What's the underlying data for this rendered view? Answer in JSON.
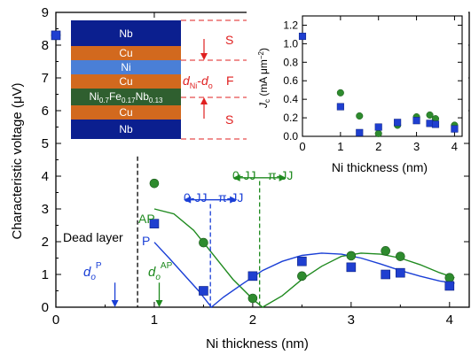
{
  "colors": {
    "ap": "#1f8a1f",
    "ap_marker": "#2e8b2e",
    "p": "#1a3fd6",
    "p_marker": "#1f3fd0",
    "nb": "#0b1f8f",
    "cu": "#d2691e",
    "ni": "#4a7fd6",
    "nifenb": "#2f5f2f",
    "red": "#e02020",
    "black": "#000000"
  },
  "chart_data": [
    {
      "type": "scatter",
      "xlabel": "Ni thickness (nm)",
      "ylabel": "Characteristic voltage (μV)",
      "xlim": [
        0,
        4.2
      ],
      "ylim": [
        0,
        9
      ],
      "xticks": [
        "0",
        "1",
        "2",
        "3",
        "4"
      ],
      "yticks": [
        "0",
        "1",
        "2",
        "3",
        "4",
        "5",
        "6",
        "7",
        "8",
        "9"
      ],
      "series": [
        {
          "name": "AP",
          "marker": "circle",
          "x": [
            0,
            1.0,
            1.5,
            2.0,
            2.5,
            3.0,
            3.35,
            3.5,
            4.0
          ],
          "y": [
            8.3,
            3.78,
            1.97,
            0.27,
            0.95,
            1.57,
            1.72,
            1.55,
            0.9
          ]
        },
        {
          "name": "P",
          "marker": "square",
          "x": [
            0,
            1.0,
            1.5,
            2.0,
            2.5,
            3.0,
            3.35,
            3.5,
            4.0
          ],
          "y": [
            8.3,
            2.55,
            0.5,
            0.95,
            1.4,
            1.22,
            1.0,
            1.05,
            0.65
          ]
        }
      ],
      "fits": [
        {
          "name": "AP fit",
          "x": [
            1.0,
            1.2,
            1.4,
            1.6,
            1.8,
            2.0,
            2.1,
            2.3,
            2.5,
            2.7,
            2.9,
            3.1,
            3.3,
            3.5,
            3.7,
            3.9,
            4.05
          ],
          "y": [
            3.0,
            2.85,
            2.35,
            1.6,
            0.85,
            0.25,
            0.0,
            0.35,
            0.85,
            1.25,
            1.55,
            1.65,
            1.62,
            1.5,
            1.3,
            1.05,
            0.9
          ]
        },
        {
          "name": "P fit",
          "x": [
            1.0,
            1.15,
            1.3,
            1.45,
            1.58,
            1.7,
            1.9,
            2.1,
            2.3,
            2.5,
            2.7,
            2.9,
            3.1,
            3.3,
            3.5,
            3.7,
            3.9,
            4.05
          ],
          "y": [
            1.98,
            1.5,
            1.0,
            0.5,
            0.0,
            0.3,
            0.72,
            1.12,
            1.4,
            1.58,
            1.65,
            1.62,
            1.5,
            1.32,
            1.12,
            0.95,
            0.8,
            0.73
          ]
        }
      ],
      "annotations": {
        "ap_label": "AP",
        "p_label": "P",
        "dead_layer": "Dead layer",
        "dead_layer_x": 0.83,
        "do_p_base": "d",
        "do_p_sub": "o",
        "do_p_sup": "P",
        "do_p_x": 0.6,
        "do_ap_base": "d",
        "do_ap_sub": "o",
        "do_ap_sup": "AP",
        "do_ap_x": 1.05,
        "p_transition_x": 1.57,
        "ap_transition_x": 2.07,
        "p_jj_0": "0-JJ",
        "p_jj_pi": "π-JJ",
        "ap_jj_0": "0-JJ",
        "ap_jj_pi": "π-JJ"
      }
    },
    {
      "type": "scatter",
      "xlabel": "Ni thickness (nm)",
      "ylabel_base": "J",
      "ylabel_sub": "c",
      "ylabel_units_pre": " (mA μm",
      "ylabel_units_sup": "−2",
      "ylabel_units_post": ")",
      "xlim": [
        0,
        4.2
      ],
      "ylim": [
        0,
        1.3
      ],
      "xticks": [
        "0",
        "1",
        "2",
        "3",
        "4"
      ],
      "yticks": [
        "0.0",
        "0.2",
        "0.4",
        "0.6",
        "0.8",
        "1.0",
        "1.2"
      ],
      "series": [
        {
          "name": "AP",
          "marker": "circle",
          "x": [
            0,
            1.0,
            1.5,
            2.0,
            2.5,
            3.0,
            3.35,
            3.5,
            4.0
          ],
          "y": [
            1.08,
            0.47,
            0.22,
            0.03,
            0.12,
            0.21,
            0.23,
            0.19,
            0.12
          ]
        },
        {
          "name": "P",
          "marker": "square",
          "x": [
            0,
            1.0,
            1.5,
            2.0,
            2.5,
            3.0,
            3.35,
            3.5,
            4.0
          ],
          "y": [
            1.08,
            0.32,
            0.04,
            0.1,
            0.15,
            0.17,
            0.14,
            0.13,
            0.08
          ]
        }
      ]
    }
  ],
  "stack": {
    "layers": [
      "Nb",
      "Cu",
      "Ni",
      "Cu",
      "Ni0.7Fe0.17Nb0.13",
      "Cu",
      "Nb"
    ],
    "nb_top": "Nb",
    "cu1": "Cu",
    "ni": "Ni",
    "cu2": "Cu",
    "alloy_ni": "Ni",
    "alloy_ni_sub": "0.7",
    "alloy_fe": "Fe",
    "alloy_fe_sub": "0.17",
    "alloy_nb": "Nb",
    "alloy_nb_sub": "0.13",
    "cu3": "Cu",
    "nb_bottom": "Nb",
    "label_s_top": "S",
    "label_f": "F",
    "label_s_bottom": "S",
    "dni_base": "d",
    "dni_sub": "Ni",
    "dni_mid": "-",
    "do_base": "d",
    "do_sub": "o"
  }
}
